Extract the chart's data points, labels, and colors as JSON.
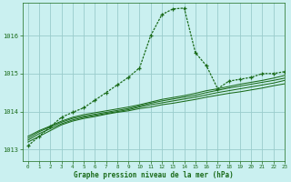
{
  "title": "Graphe pression niveau de la mer (hPa)",
  "background_color": "#caf0f0",
  "grid_color": "#99cccc",
  "line_color": "#1a6b1a",
  "xlim": [
    -0.5,
    23
  ],
  "ylim": [
    1012.7,
    1016.85
  ],
  "xticks": [
    0,
    1,
    2,
    3,
    4,
    5,
    6,
    7,
    8,
    9,
    10,
    11,
    12,
    13,
    14,
    15,
    16,
    17,
    18,
    19,
    20,
    21,
    22,
    23
  ],
  "yticks": [
    1013,
    1014,
    1015,
    1016
  ],
  "series_main": [
    1013.1,
    1013.35,
    1013.6,
    1013.85,
    1013.98,
    1014.1,
    1014.3,
    1014.5,
    1014.7,
    1014.9,
    1015.15,
    1016.0,
    1016.55,
    1016.7,
    1016.72,
    1015.55,
    1015.2,
    1014.6,
    1014.8,
    1014.85,
    1014.9,
    1015.0,
    1015.0,
    1015.05
  ],
  "series_flat": [
    [
      1013.2,
      1013.35,
      1013.5,
      1013.65,
      1013.75,
      1013.82,
      1013.87,
      1013.93,
      1013.98,
      1014.02,
      1014.08,
      1014.12,
      1014.18,
      1014.22,
      1014.27,
      1014.32,
      1014.38,
      1014.43,
      1014.48,
      1014.52,
      1014.57,
      1014.62,
      1014.68,
      1014.73
    ],
    [
      1013.25,
      1013.42,
      1013.55,
      1013.68,
      1013.78,
      1013.85,
      1013.9,
      1013.95,
      1014.0,
      1014.05,
      1014.12,
      1014.18,
      1014.23,
      1014.28,
      1014.33,
      1014.38,
      1014.44,
      1014.5,
      1014.55,
      1014.6,
      1014.65,
      1014.7,
      1014.75,
      1014.82
    ],
    [
      1013.3,
      1013.47,
      1013.6,
      1013.72,
      1013.82,
      1013.88,
      1013.93,
      1013.98,
      1014.03,
      1014.08,
      1014.15,
      1014.22,
      1014.28,
      1014.33,
      1014.38,
      1014.43,
      1014.5,
      1014.56,
      1014.62,
      1014.67,
      1014.72,
      1014.77,
      1014.82,
      1014.88
    ],
    [
      1013.35,
      1013.5,
      1013.62,
      1013.75,
      1013.85,
      1013.92,
      1013.97,
      1014.02,
      1014.07,
      1014.12,
      1014.18,
      1014.25,
      1014.32,
      1014.37,
      1014.42,
      1014.48,
      1014.55,
      1014.6,
      1014.66,
      1014.72,
      1014.77,
      1014.82,
      1014.88,
      1014.95
    ]
  ]
}
